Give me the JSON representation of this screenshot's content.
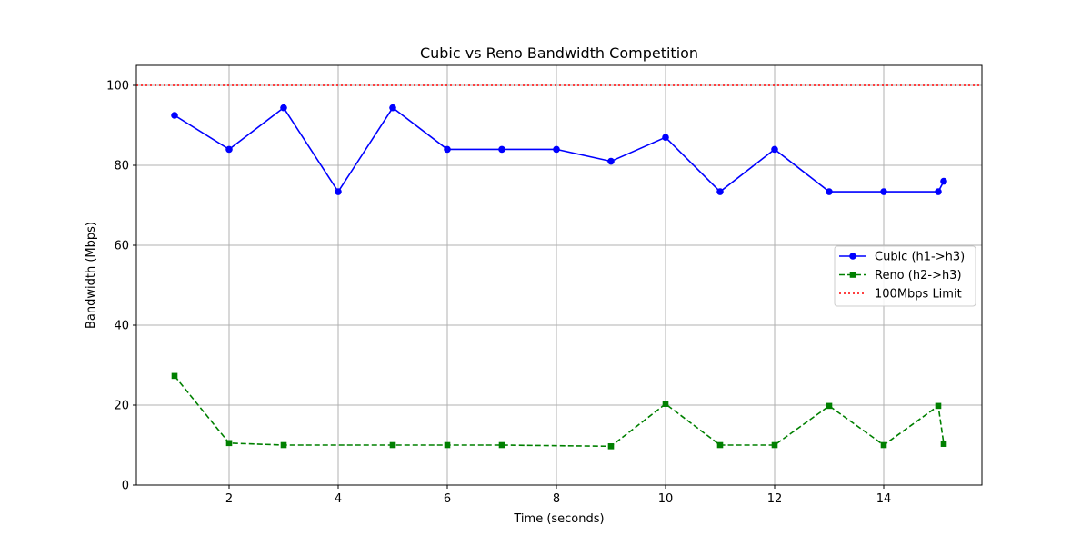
{
  "chart_data": {
    "type": "line",
    "title": "Cubic vs Reno Bandwidth Competition",
    "xlabel": "Time (seconds)",
    "ylabel": "Bandwidth (Mbps)",
    "xlim": [
      0.3,
      15.8
    ],
    "ylim": [
      0,
      105
    ],
    "xticks": [
      2,
      4,
      6,
      8,
      10,
      12,
      14
    ],
    "yticks": [
      0,
      20,
      40,
      60,
      80,
      100
    ],
    "grid": true,
    "legend_position": "center-right",
    "series": [
      {
        "name": "Cubic (h1->h3)",
        "color": "#0000ff",
        "line_style": "solid",
        "marker": "circle",
        "x": [
          1,
          2,
          3,
          4,
          5,
          6,
          7,
          8,
          9,
          10,
          11,
          12,
          13,
          14,
          15,
          15.1
        ],
        "y": [
          92.5,
          84,
          94.4,
          73.4,
          94.4,
          84,
          84,
          84,
          81,
          87,
          73.4,
          84,
          73.4,
          73.4,
          73.4,
          76
        ]
      },
      {
        "name": "Reno (h2->h3)",
        "color": "#008000",
        "line_style": "dashed",
        "marker": "square",
        "x": [
          1,
          2,
          3,
          5,
          6,
          7,
          9,
          10,
          11,
          12,
          13,
          14,
          15,
          15.1
        ],
        "y": [
          27.3,
          10.5,
          10,
          10,
          10,
          10,
          9.7,
          20.3,
          10,
          10,
          19.8,
          10,
          19.8,
          10.3
        ]
      },
      {
        "name": "100Mbps Limit",
        "color": "#ff0000",
        "line_style": "dotted",
        "marker": "none",
        "hline": 100
      }
    ]
  }
}
